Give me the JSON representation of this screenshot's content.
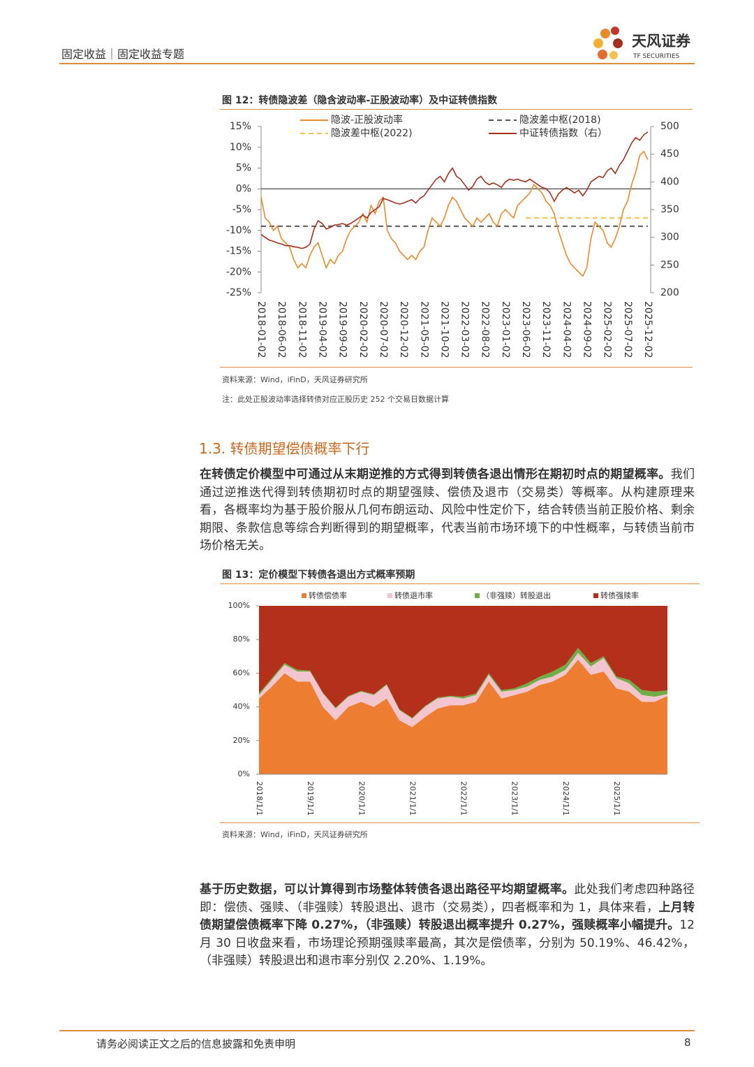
{
  "header": {
    "section": "固定收益｜固定收益专题",
    "logo_name": "天风证券",
    "logo_subtitle": "TF SECURITIES"
  },
  "chart_data": [
    {
      "type": "line",
      "title": "图 12：转债隐波差（隐含波动率-正股波动率）及中证转债指数",
      "source": "资料来源：Wind，iFinD，天风证券研究所",
      "note": "注：此处正股波动率选择转债对应正股历史 252 个交易日数据计算",
      "categories": [
        "2018-01-02",
        null,
        null,
        null,
        null,
        "2018-06-02",
        null,
        null,
        null,
        null,
        "2018-11-02",
        null,
        null,
        null,
        null,
        "2019-04-02",
        null,
        null,
        null,
        null,
        "2019-09-02",
        null,
        null,
        null,
        null,
        "2020-02-02",
        null,
        null,
        null,
        null,
        "2020-07-02",
        null,
        null,
        null,
        null,
        "2020-12-02",
        null,
        null,
        null,
        null,
        "2021-05-02",
        null,
        null,
        null,
        null,
        "2021-10-02",
        null,
        null,
        null,
        null,
        "2022-03-02",
        null,
        null,
        null,
        null,
        "2022-08-02",
        null,
        null,
        null,
        null,
        "2023-01-02",
        null,
        null,
        null,
        null,
        "2023-06-02",
        null,
        null,
        null,
        null,
        "2023-11-02",
        null,
        null,
        null,
        null,
        "2024-04-02",
        null,
        null,
        null,
        null,
        "2024-09-02",
        null,
        null,
        null,
        null,
        "2025-02-02",
        null,
        null,
        null,
        null,
        "2025-07-02",
        null,
        null,
        null,
        null,
        "2025-12-02"
      ],
      "series": [
        {
          "name": "隐波-正股波动率",
          "color": "#e8892b",
          "values": [
            -2,
            -7,
            -8,
            -10,
            -9,
            -12,
            -13,
            -14,
            -17,
            -19,
            -18,
            -19,
            -16,
            -14,
            -13,
            -16,
            -19,
            -17,
            -18,
            -16,
            -15,
            -12,
            -10,
            -9,
            -8,
            -6,
            -8,
            -4,
            -6,
            -3,
            -2,
            -10,
            -12,
            -13,
            -15,
            -16,
            -17,
            -16,
            -17,
            -15,
            -14,
            -10,
            -7,
            -8,
            -9,
            -7,
            -4,
            -2,
            -3,
            -5,
            -7,
            -8,
            -9,
            -7,
            -8,
            -7,
            -6,
            -8,
            -9,
            -6,
            -5,
            -6,
            -7,
            -4,
            -3,
            -2,
            -1,
            1,
            0,
            -1,
            -3,
            -4,
            -6,
            -10,
            -13,
            -16,
            -18,
            -19,
            -20,
            -21,
            -19,
            -12,
            -8,
            -9,
            -10,
            -13,
            -14,
            -12,
            -9,
            -5,
            -3,
            1,
            4,
            8,
            9,
            7
          ]
        },
        {
          "name": "中证转债指数（右）",
          "color": "#a3301c",
          "axis": "y2",
          "values": [
            305,
            300,
            295,
            293,
            290,
            288,
            285,
            285,
            283,
            282,
            280,
            282,
            288,
            315,
            330,
            325,
            315,
            318,
            322,
            323,
            325,
            322,
            325,
            330,
            335,
            340,
            335,
            345,
            350,
            355,
            370,
            368,
            365,
            362,
            360,
            362,
            365,
            368,
            362,
            370,
            375,
            385,
            395,
            405,
            410,
            400,
            415,
            425,
            410,
            405,
            395,
            385,
            392,
            405,
            410,
            400,
            395,
            398,
            395,
            390,
            400,
            405,
            403,
            405,
            402,
            400,
            405,
            400,
            395,
            390,
            388,
            380,
            365,
            378,
            385,
            390,
            385,
            380,
            385,
            375,
            385,
            400,
            405,
            410,
            408,
            420,
            425,
            415,
            430,
            440,
            455,
            470,
            480,
            475,
            485,
            490
          ]
        }
      ],
      "hlines": [
        {
          "name": "隐波差中枢(2018)",
          "color": "#555555",
          "value": -9
        },
        {
          "name": "隐波差中枢(2022)",
          "color": "#f2c14e",
          "value": -7,
          "start": "2023-06-02"
        }
      ],
      "ylim": [
        -25,
        15
      ],
      "yticks": [
        {
          "value": -25,
          "label": "-25%"
        },
        {
          "value": -20,
          "label": "-20%"
        },
        {
          "value": -15,
          "label": "-15%"
        },
        {
          "value": -10,
          "label": "-10%"
        },
        {
          "value": -5,
          "label": "-5%"
        },
        {
          "value": 0,
          "label": "0%"
        },
        {
          "value": 5,
          "label": "5%"
        },
        {
          "value": 10,
          "label": "10%"
        },
        {
          "value": 15,
          "label": "15%"
        }
      ],
      "y2lim": [
        200,
        500
      ],
      "y2ticks": [
        200,
        250,
        300,
        350,
        400,
        450,
        500
      ]
    },
    {
      "type": "stacked_area",
      "title": "图 13：定价模型下转债各退出方式概率预期",
      "source": "资料来源：Wind，iFinD，天风证券研究所",
      "categories": [
        "2018/1/1",
        null,
        null,
        null,
        "2019/1/1",
        null,
        null,
        null,
        "2020/1/1",
        null,
        null,
        null,
        "2021/1/1",
        null,
        null,
        null,
        "2022/1/1",
        null,
        null,
        null,
        "2023/1/1",
        null,
        null,
        null,
        "2024/1/1",
        null,
        null,
        null,
        "2025/1/1",
        null,
        null,
        null,
        null
      ],
      "series": [
        {
          "name": "转债偿债率",
          "color": "#ed7d31",
          "values": [
            45,
            52,
            60,
            55,
            55,
            40,
            32,
            40,
            43,
            40,
            45,
            32,
            28,
            34,
            39,
            41,
            41,
            43,
            55,
            45,
            47,
            49,
            53,
            55,
            59,
            68,
            59,
            61,
            51,
            49,
            43,
            43,
            46.42
          ]
        },
        {
          "name": "转债退市率",
          "color": "#f3c6cf",
          "values": [
            2,
            4,
            5,
            6,
            6,
            8,
            7,
            6,
            6,
            7,
            8,
            6,
            5,
            6,
            6,
            5,
            4,
            4,
            4,
            4,
            3,
            3,
            3,
            3,
            3,
            4,
            5,
            8,
            6,
            5,
            4,
            3,
            1.19
          ]
        },
        {
          "name": "（非强赎）转股退出",
          "color": "#70ad47",
          "values": [
            1,
            1,
            1,
            1,
            0.5,
            0.5,
            0.5,
            0.5,
            0.5,
            0.5,
            0.5,
            0.5,
            0.5,
            0.5,
            0.5,
            0.5,
            1,
            1,
            1,
            1,
            1,
            2,
            2,
            3,
            3,
            3,
            2,
            1,
            1,
            2,
            3,
            3,
            2.2
          ]
        },
        {
          "name": "转债强赎率",
          "color": "#b3301a",
          "values": [
            52,
            43,
            34,
            38,
            38.5,
            51.5,
            60.5,
            53.5,
            50.5,
            52.5,
            46.5,
            61.5,
            66.5,
            59.5,
            54.5,
            53.5,
            54,
            52,
            40,
            50,
            49,
            46,
            42,
            39,
            35,
            25,
            34,
            30,
            42,
            44,
            50,
            51,
            50.19
          ]
        }
      ],
      "ylim": [
        0,
        100
      ],
      "yticks": [
        {
          "value": 0,
          "label": "0%"
        },
        {
          "value": 20,
          "label": "20%"
        },
        {
          "value": 40,
          "label": "40%"
        },
        {
          "value": 60,
          "label": "60%"
        },
        {
          "value": 80,
          "label": "80%"
        },
        {
          "value": 100,
          "label": "100%"
        }
      ]
    }
  ],
  "section_title": "1.3. 转债期望偿债概率下行",
  "paragraphs": [
    {
      "runs": [
        {
          "text": "在转债定价模型中可通过从末期逆推的方式得到转债各退出情形在期初时点的期望概率。",
          "bold": true
        },
        {
          "text": "我们通过逆推迭代得到转债期初时点的期望强赎、偿债及退市（交易类）等概率。从构建原理来看，各概率均为基于股价服从几何布朗运动、风险中性定价下，结合转债当前正股价格、剩余期限、条款信息等综合判断得到的期望概率，代表当前市场环境下的中性概率，与转债当前市场价格无关。",
          "bold": false
        }
      ]
    },
    {
      "runs": [
        {
          "text": "基于历史数据，可以计算得到市场整体转债各退出路径平均期望概率。",
          "bold": true
        },
        {
          "text": "此处我们考虑四种路径即：偿债、强赎、（非强赎）转股退出、退市（交易类），四者概率和为 1，具体来看，",
          "bold": false
        },
        {
          "text": "上月转债期望偿债概率下降 0.27%，（非强赎）转股退出概率提升 0.27%，强赎概率小幅提升。",
          "bold": true
        },
        {
          "text": "12 月 30 日收盘来看，市场理论预期强赎率最高，其次是偿债率，分别为 50.19%、46.42%，（非强赎）转股退出和退市率分别仅 2.20%、1.19%。",
          "bold": false
        }
      ]
    }
  ],
  "footer": {
    "disclaimer": "请务必阅读正文之后的信息披露和免责申明",
    "page": "8"
  }
}
